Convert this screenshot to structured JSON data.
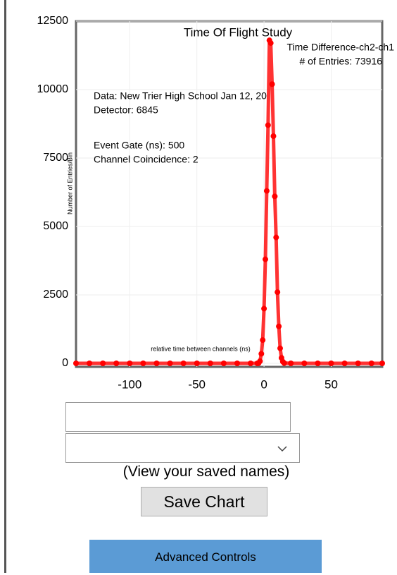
{
  "chart_data": {
    "type": "line",
    "title": "Time Of Flight Study",
    "annotations": [
      "Time Difference-ch2-ch1",
      "# of Entries: 73916",
      "Data: New Trier High School Jan 12, 20",
      "Detector: 6845",
      "Event Gate (ns): 500",
      "Channel Coincidence: 2"
    ],
    "x_label": "relative time between channels (ns)",
    "y_label": "Number of Entries/Bin",
    "x": [
      -140,
      -130,
      -120,
      -110,
      -100,
      -90,
      -80,
      -70,
      -60,
      -50,
      -40,
      -30,
      -20,
      -10,
      -5,
      -4,
      -3,
      -2,
      -1,
      0,
      1,
      2,
      3,
      4,
      5,
      6,
      7,
      8,
      9,
      10,
      11,
      12,
      13,
      14,
      15,
      20,
      30,
      40,
      50,
      60,
      70,
      80,
      88
    ],
    "series": [
      {
        "name": "Time Difference-ch2-ch1",
        "color": "#ff0000",
        "values": [
          0,
          0,
          0,
          0,
          0,
          0,
          0,
          0,
          0,
          0,
          0,
          0,
          0,
          0,
          0,
          10,
          80,
          350,
          850,
          2000,
          3800,
          6300,
          8700,
          11800,
          11700,
          10200,
          8300,
          6100,
          4600,
          2600,
          1350,
          550,
          200,
          60,
          10,
          0,
          0,
          0,
          0,
          0,
          0,
          0,
          0
        ]
      }
    ],
    "xlim": [
      -140,
      88
    ],
    "ylim": [
      0,
      12500
    ],
    "xticks": [
      -100,
      -50,
      0,
      50
    ],
    "yticks": [
      0,
      2500,
      5000,
      7500,
      10000,
      12500
    ],
    "grid": true
  },
  "controls": {
    "saved_names_link": "(View your saved names)",
    "save_button": "Save Chart",
    "advanced_button": "Advanced Controls"
  }
}
